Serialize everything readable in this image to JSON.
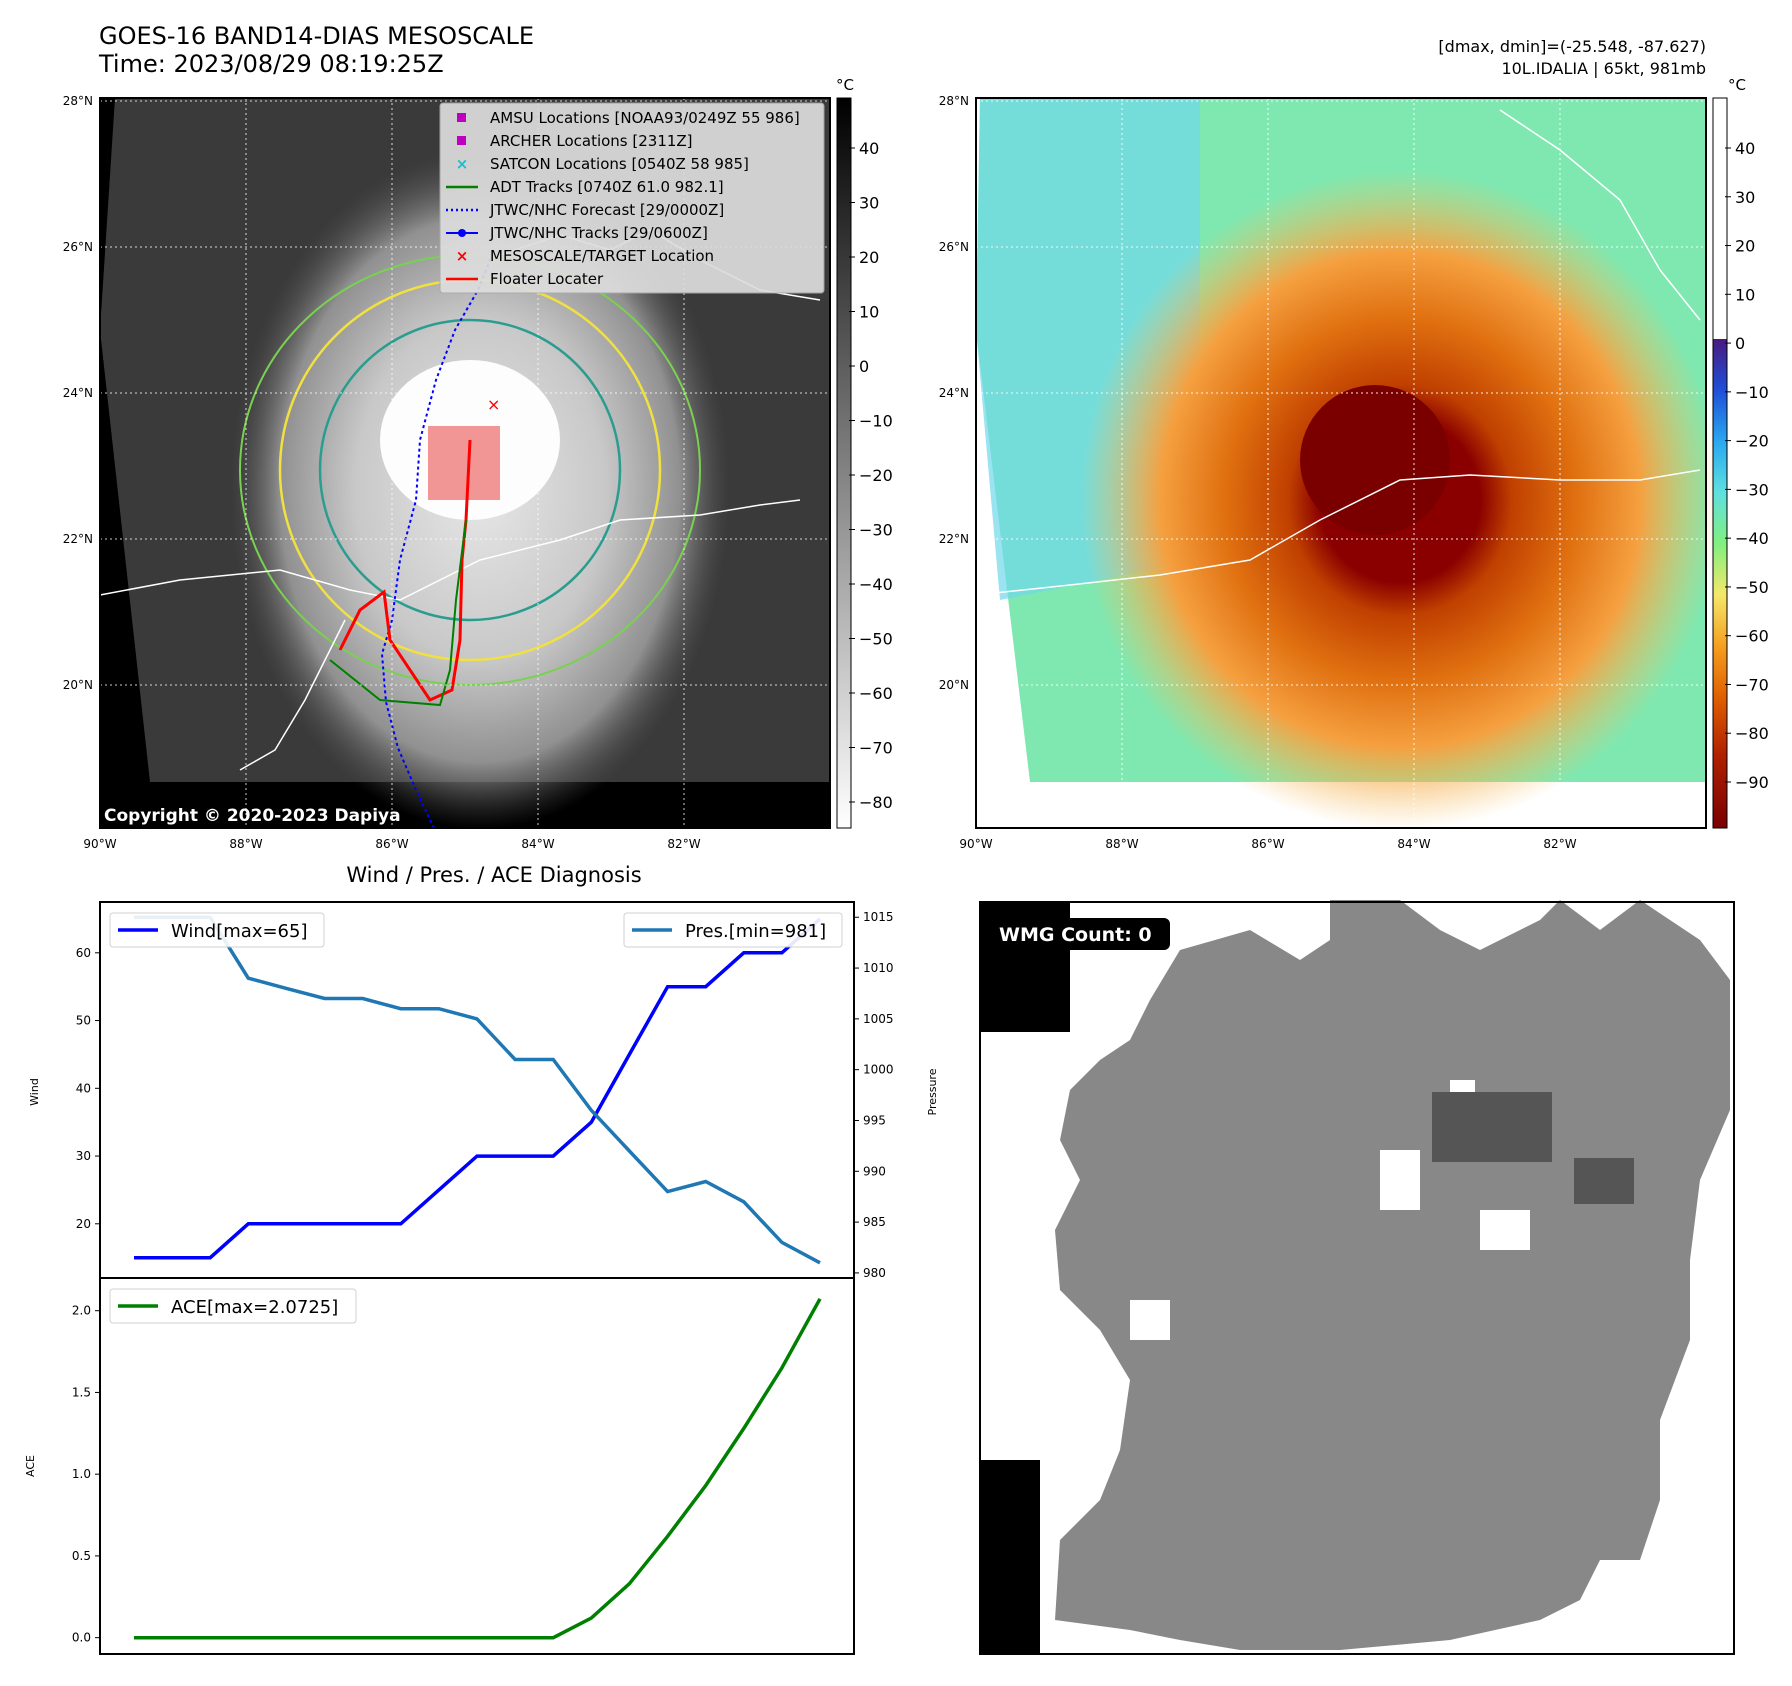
{
  "header": {
    "title_line1": "GOES-16 BAND14-DIAS MESOSCALE",
    "title_line2": "Time: 2023/08/29 08:19:25Z",
    "right_line1": "[dmax, dmin]=(-25.548, -87.627)",
    "right_line2": "10L.IDALIA | 65kt, 981mb"
  },
  "map_axes": {
    "lon_ticks": [
      "90°W",
      "88°W",
      "86°W",
      "84°W",
      "82°W"
    ],
    "lat_ticks": [
      "28°N",
      "26°N",
      "24°N",
      "22°N",
      "20°N"
    ],
    "copyright": "Copyright © 2020-2023 Dapiya"
  },
  "colorbar_left": {
    "unit": "°C",
    "ticks": [
      "40",
      "30",
      "20",
      "10",
      "0",
      "−10",
      "−20",
      "−30",
      "−40",
      "−50",
      "−60",
      "−70",
      "−80"
    ]
  },
  "colorbar_right": {
    "unit": "°C",
    "ticks": [
      "40",
      "30",
      "20",
      "10",
      "0",
      "−10",
      "−20",
      "−30",
      "−40",
      "−50",
      "−60",
      "−70",
      "−80",
      "−90"
    ]
  },
  "legend": [
    {
      "label": "AMSU Locations [NOAA93/0249Z 55 986]",
      "color": "#c000c0",
      "marker": "square"
    },
    {
      "label": "ARCHER Locations [2311Z]",
      "color": "#c000c0",
      "marker": "square"
    },
    {
      "label": "SATCON Locations [0540Z 58 985]",
      "color": "#17becf",
      "marker": "x"
    },
    {
      "label": "ADT Tracks [0740Z 61.0 982.1]",
      "color": "#008000",
      "marker": "line"
    },
    {
      "label": "JTWC/NHC Forecast [29/0000Z]",
      "color": "#0000ff",
      "marker": "dotted"
    },
    {
      "label": "JTWC/NHC Tracks [29/0600Z]",
      "color": "#0000ff",
      "marker": "line-dot"
    },
    {
      "label": "MESOSCALE/TARGET Location",
      "color": "#ff0000",
      "marker": "x"
    },
    {
      "label": "Floater Locater",
      "color": "#ff0000",
      "marker": "line"
    }
  ],
  "diag": {
    "title": "Wind / Pres. / ACE Diagnosis",
    "wind_legend": "Wind[max=65]",
    "pres_legend": "Pres.[min=981]",
    "ace_legend": "ACE[max=2.0725]",
    "wind_ylabel": "Wind",
    "pres_ylabel": "Pressure",
    "ace_ylabel": "ACE",
    "wind_ticks": [
      "60",
      "50",
      "40",
      "30",
      "20"
    ],
    "pres_ticks": [
      "1015",
      "1010",
      "1005",
      "1000",
      "995",
      "990",
      "985",
      "980"
    ],
    "ace_ticks": [
      "2.0",
      "1.5",
      "1.0",
      "0.5",
      "0.0"
    ]
  },
  "wmg": {
    "label": "WMG Count: 0"
  },
  "chart_data": {
    "type": "line",
    "x": [
      0,
      1,
      2,
      3,
      4,
      5,
      6,
      7,
      8,
      9,
      10,
      11,
      12,
      13,
      14,
      15,
      16,
      17,
      18
    ],
    "series": [
      {
        "name": "Wind[max=65]",
        "color": "#0000ff",
        "axis": "wind",
        "values": [
          15,
          15,
          15,
          20,
          20,
          20,
          20,
          20,
          25,
          30,
          30,
          30,
          35,
          45,
          55,
          55,
          60,
          60,
          65
        ]
      },
      {
        "name": "Pres.[min=981]",
        "color": "#1f77b4",
        "axis": "pressure",
        "values": [
          1015,
          1015,
          1015,
          1009,
          1008,
          1007,
          1007,
          1006,
          1006,
          1005,
          1001,
          1001,
          996,
          992,
          988,
          989,
          987,
          983,
          981
        ]
      },
      {
        "name": "ACE[max=2.0725]",
        "color": "#008000",
        "axis": "ace",
        "values": [
          0,
          0,
          0,
          0,
          0,
          0,
          0,
          0,
          0,
          0,
          0,
          0,
          0.12,
          0.33,
          0.62,
          0.93,
          1.28,
          1.65,
          2.0725
        ]
      }
    ],
    "wind_ylim": [
      12,
      67.5
    ],
    "pressure_ylim": [
      979.5,
      1016.5
    ],
    "ace_ylim": [
      -0.1,
      2.2
    ]
  }
}
